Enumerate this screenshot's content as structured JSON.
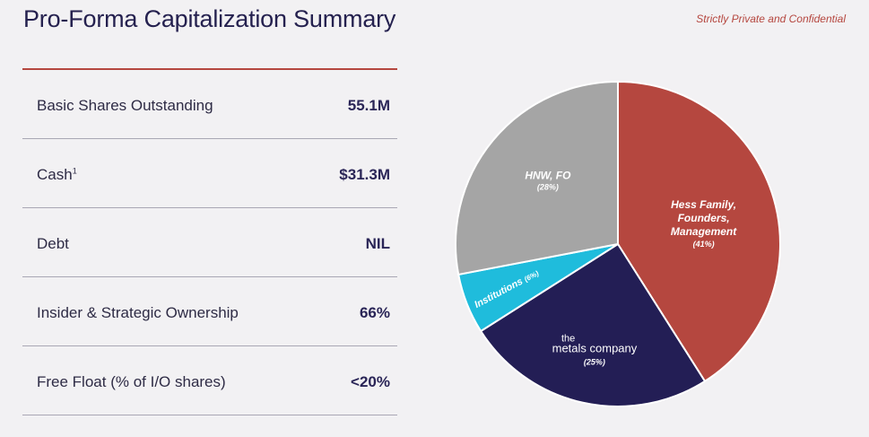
{
  "header": {
    "title": "Pro-Forma Capitalization Summary",
    "confidential": "Strictly Private and Confidential"
  },
  "table": {
    "rows": [
      {
        "label": "Basic Shares Outstanding",
        "value": "55.1M"
      },
      {
        "label": "Cash",
        "sup": "1",
        "value": "$31.3M"
      },
      {
        "label": "Debt",
        "value": "NIL"
      },
      {
        "label": "Insider & Strategic Ownership",
        "value": "66%"
      },
      {
        "label": "Free Float (% of I/O shares)",
        "value": "<20%"
      }
    ]
  },
  "colors": {
    "title": "#25214f",
    "accent": "#b5473f",
    "hess": "#b5473f",
    "tmc": "#231e55",
    "institutions": "#1fbcdc",
    "hnw": "#a5a5a5"
  },
  "chart_data": {
    "type": "pie",
    "title": "",
    "start": "12 o'clock, clockwise",
    "slices": [
      {
        "name": "Hess Family, Founders, Management",
        "lines": [
          "Hess Family,",
          "Founders,",
          "Management"
        ],
        "pct_label": "(41%)",
        "value": 41,
        "color": "#b5473f"
      },
      {
        "name": "the metals company",
        "lines": [
          "the",
          "metals company"
        ],
        "pct_label": "(25%)",
        "value": 25,
        "color": "#231e55"
      },
      {
        "name": "Institutions",
        "lines": [
          "Institutions"
        ],
        "pct_label": "(6%)",
        "value": 6,
        "color": "#1fbcdc"
      },
      {
        "name": "HNW, FO",
        "lines": [
          "HNW, FO"
        ],
        "pct_label": "(28%)",
        "value": 28,
        "color": "#a5a5a5"
      }
    ]
  }
}
